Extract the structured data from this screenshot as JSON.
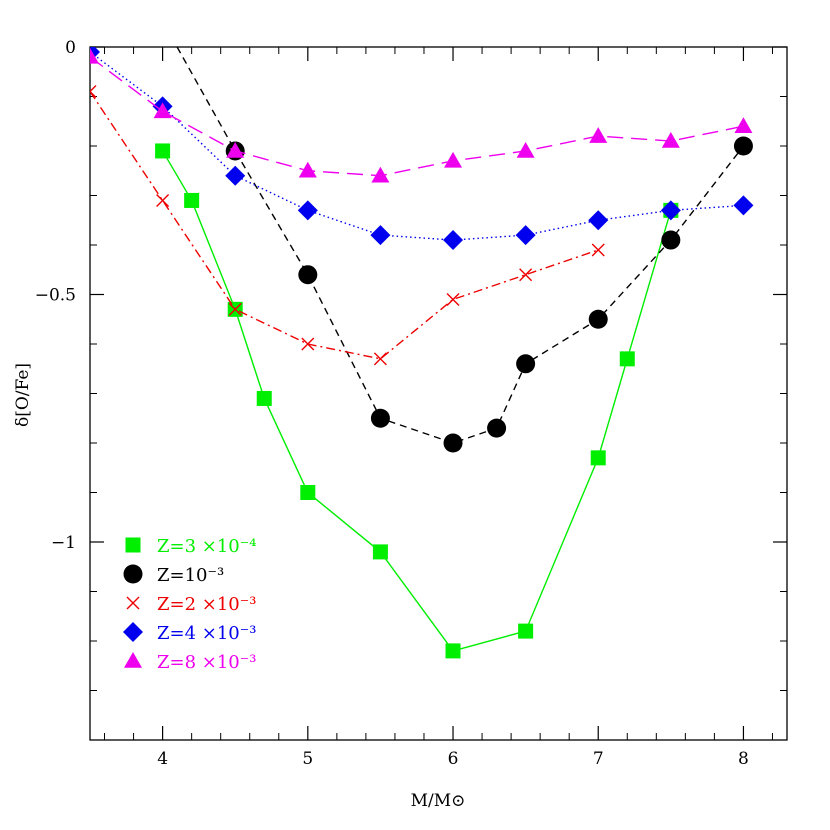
{
  "chart_data": {
    "type": "line",
    "title": "",
    "xlabel": "M/M⊙",
    "ylabel": "δ[O/Fe]",
    "xlim": [
      3.5,
      8.3
    ],
    "ylim": [
      -1.4,
      0.0
    ],
    "xticks": {
      "values": [
        4,
        5,
        6,
        7,
        8
      ],
      "labels": [
        "4",
        "5",
        "6",
        "7",
        "8"
      ]
    },
    "yticks": {
      "values": [
        0,
        -0.5,
        -1
      ],
      "labels": [
        "0",
        "−0.5",
        "−1"
      ]
    },
    "grid": false,
    "legend_position": "bottom-left",
    "series": [
      {
        "name": "Z=3 ×10⁻⁴",
        "color": "#00ee00",
        "marker": "square",
        "line_style": "solid",
        "points": [
          [
            4.0,
            -0.21
          ],
          [
            4.2,
            -0.31
          ],
          [
            4.5,
            -0.53
          ],
          [
            4.7,
            -0.71
          ],
          [
            5.0,
            -0.9
          ],
          [
            5.5,
            -1.02
          ],
          [
            6.0,
            -1.22
          ],
          [
            6.5,
            -1.18
          ],
          [
            7.0,
            -0.83
          ],
          [
            7.2,
            -0.63
          ],
          [
            7.5,
            -0.33
          ]
        ]
      },
      {
        "name": "Z=10⁻³",
        "color": "#000000",
        "marker": "circle",
        "line_style": "dashed",
        "points": [
          [
            4.5,
            -0.21
          ],
          [
            5.0,
            -0.46
          ],
          [
            5.5,
            -0.75
          ],
          [
            6.0,
            -0.8
          ],
          [
            6.3,
            -0.77
          ],
          [
            6.5,
            -0.64
          ],
          [
            7.0,
            -0.55
          ],
          [
            7.5,
            -0.39
          ],
          [
            8.0,
            -0.2
          ]
        ],
        "extra_line_start": [
          4.1,
          0.0
        ]
      },
      {
        "name": "Z=2 ×10⁻³",
        "color": "#ee0000",
        "marker": "cross",
        "line_style": "dashdot",
        "points": [
          [
            3.5,
            -0.09
          ],
          [
            4.0,
            -0.31
          ],
          [
            4.5,
            -0.53
          ],
          [
            5.0,
            -0.6
          ],
          [
            5.5,
            -0.63
          ],
          [
            6.0,
            -0.51
          ],
          [
            6.5,
            -0.46
          ],
          [
            7.0,
            -0.41
          ]
        ]
      },
      {
        "name": "Z=4 ×10⁻³",
        "color": "#0000ee",
        "marker": "diamond",
        "line_style": "dotted",
        "points": [
          [
            3.5,
            -0.01
          ],
          [
            4.0,
            -0.12
          ],
          [
            4.5,
            -0.26
          ],
          [
            5.0,
            -0.33
          ],
          [
            5.5,
            -0.38
          ],
          [
            6.0,
            -0.39
          ],
          [
            6.5,
            -0.38
          ],
          [
            7.0,
            -0.35
          ],
          [
            7.5,
            -0.33
          ],
          [
            8.0,
            -0.32
          ]
        ]
      },
      {
        "name": "Z=8 ×10⁻³",
        "color": "#ee00ee",
        "marker": "triangle",
        "line_style": "longdash",
        "points": [
          [
            3.5,
            -0.02
          ],
          [
            4.0,
            -0.13
          ],
          [
            4.5,
            -0.21
          ],
          [
            5.0,
            -0.25
          ],
          [
            5.5,
            -0.26
          ],
          [
            6.0,
            -0.23
          ],
          [
            6.5,
            -0.21
          ],
          [
            7.0,
            -0.18
          ],
          [
            7.5,
            -0.19
          ],
          [
            8.0,
            -0.16
          ]
        ]
      }
    ]
  }
}
